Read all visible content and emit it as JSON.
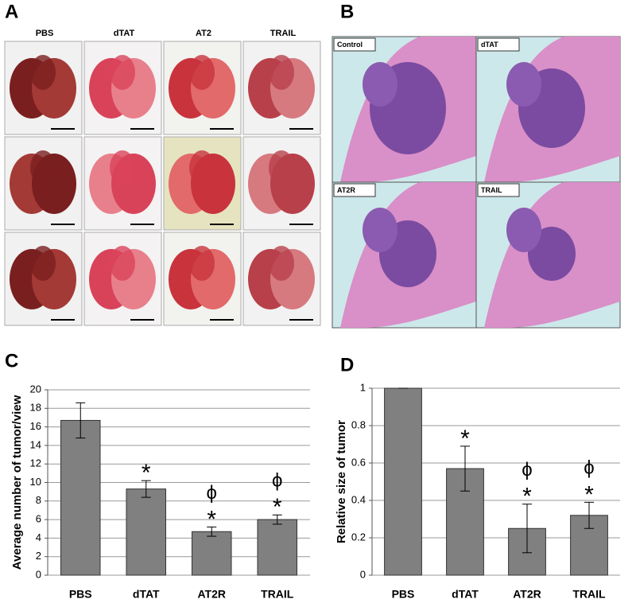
{
  "panel_a": {
    "label": "A",
    "columns": [
      "PBS",
      "dTAT",
      "AT2",
      "TRAIL"
    ]
  },
  "panel_b": {
    "label": "B",
    "images": [
      "Control",
      "dTAT",
      "AT2R",
      "TRAIL"
    ]
  },
  "chart_data": [
    {
      "type": "bar",
      "label": "C",
      "y_label": "Average number of tumor/view",
      "categories": [
        "PBS",
        "dTAT",
        "AT2R",
        "TRAIL"
      ],
      "values": [
        16.7,
        9.3,
        4.7,
        6.0
      ],
      "errors": [
        1.9,
        0.9,
        0.5,
        0.5
      ],
      "significance": [
        null,
        "*",
        "*",
        "*"
      ],
      "difference": [
        null,
        null,
        "ϕ",
        "ϕ"
      ],
      "color": "#808080",
      "ylim": [
        0,
        20
      ],
      "yticks": [
        0,
        2,
        4,
        6,
        8,
        10,
        12,
        14,
        16,
        18,
        20
      ],
      "grid": true
    },
    {
      "type": "bar",
      "label": "D",
      "y_label": "Relative size of tumor",
      "categories": [
        "PBS",
        "dTAT",
        "AT2R",
        "TRAIL"
      ],
      "values": [
        1,
        0.57,
        0.25,
        0.32
      ],
      "errors": [
        0,
        0.12,
        0.13,
        0.07
      ],
      "significance": [
        null,
        "*",
        "*",
        "*"
      ],
      "difference": [
        null,
        null,
        "ϕ",
        "ϕ"
      ],
      "color": "#808080",
      "ylim": [
        0,
        1
      ],
      "yticks": [
        0,
        0.2,
        0.4,
        0.6,
        0.8,
        1
      ],
      "grid": true
    }
  ]
}
